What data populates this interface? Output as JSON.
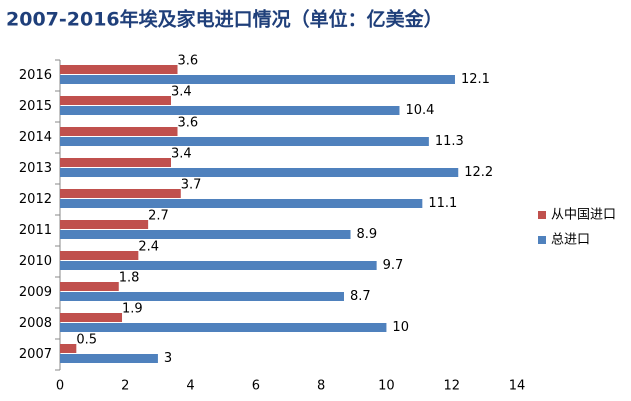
{
  "chart_data": {
    "type": "hbar",
    "title": "2007-2016年埃及家电进口情况（单位：亿美金）",
    "categories": [
      "2016",
      "2015",
      "2014",
      "2013",
      "2012",
      "2011",
      "2010",
      "2009",
      "2008",
      "2007"
    ],
    "series": [
      {
        "name": "从中国进口",
        "color": "#c0504d",
        "values": [
          3.6,
          3.4,
          3.6,
          3.4,
          3.7,
          2.7,
          2.4,
          1.8,
          1.9,
          0.5
        ]
      },
      {
        "name": "总进口",
        "color": "#4f81bd",
        "values": [
          12.1,
          10.4,
          11.3,
          12.2,
          11.1,
          8.9,
          9.7,
          8.7,
          10,
          3
        ]
      }
    ],
    "xlim": [
      0,
      14
    ],
    "xticks": [
      0,
      2,
      4,
      6,
      8,
      10,
      12,
      14
    ],
    "legend": "right"
  }
}
